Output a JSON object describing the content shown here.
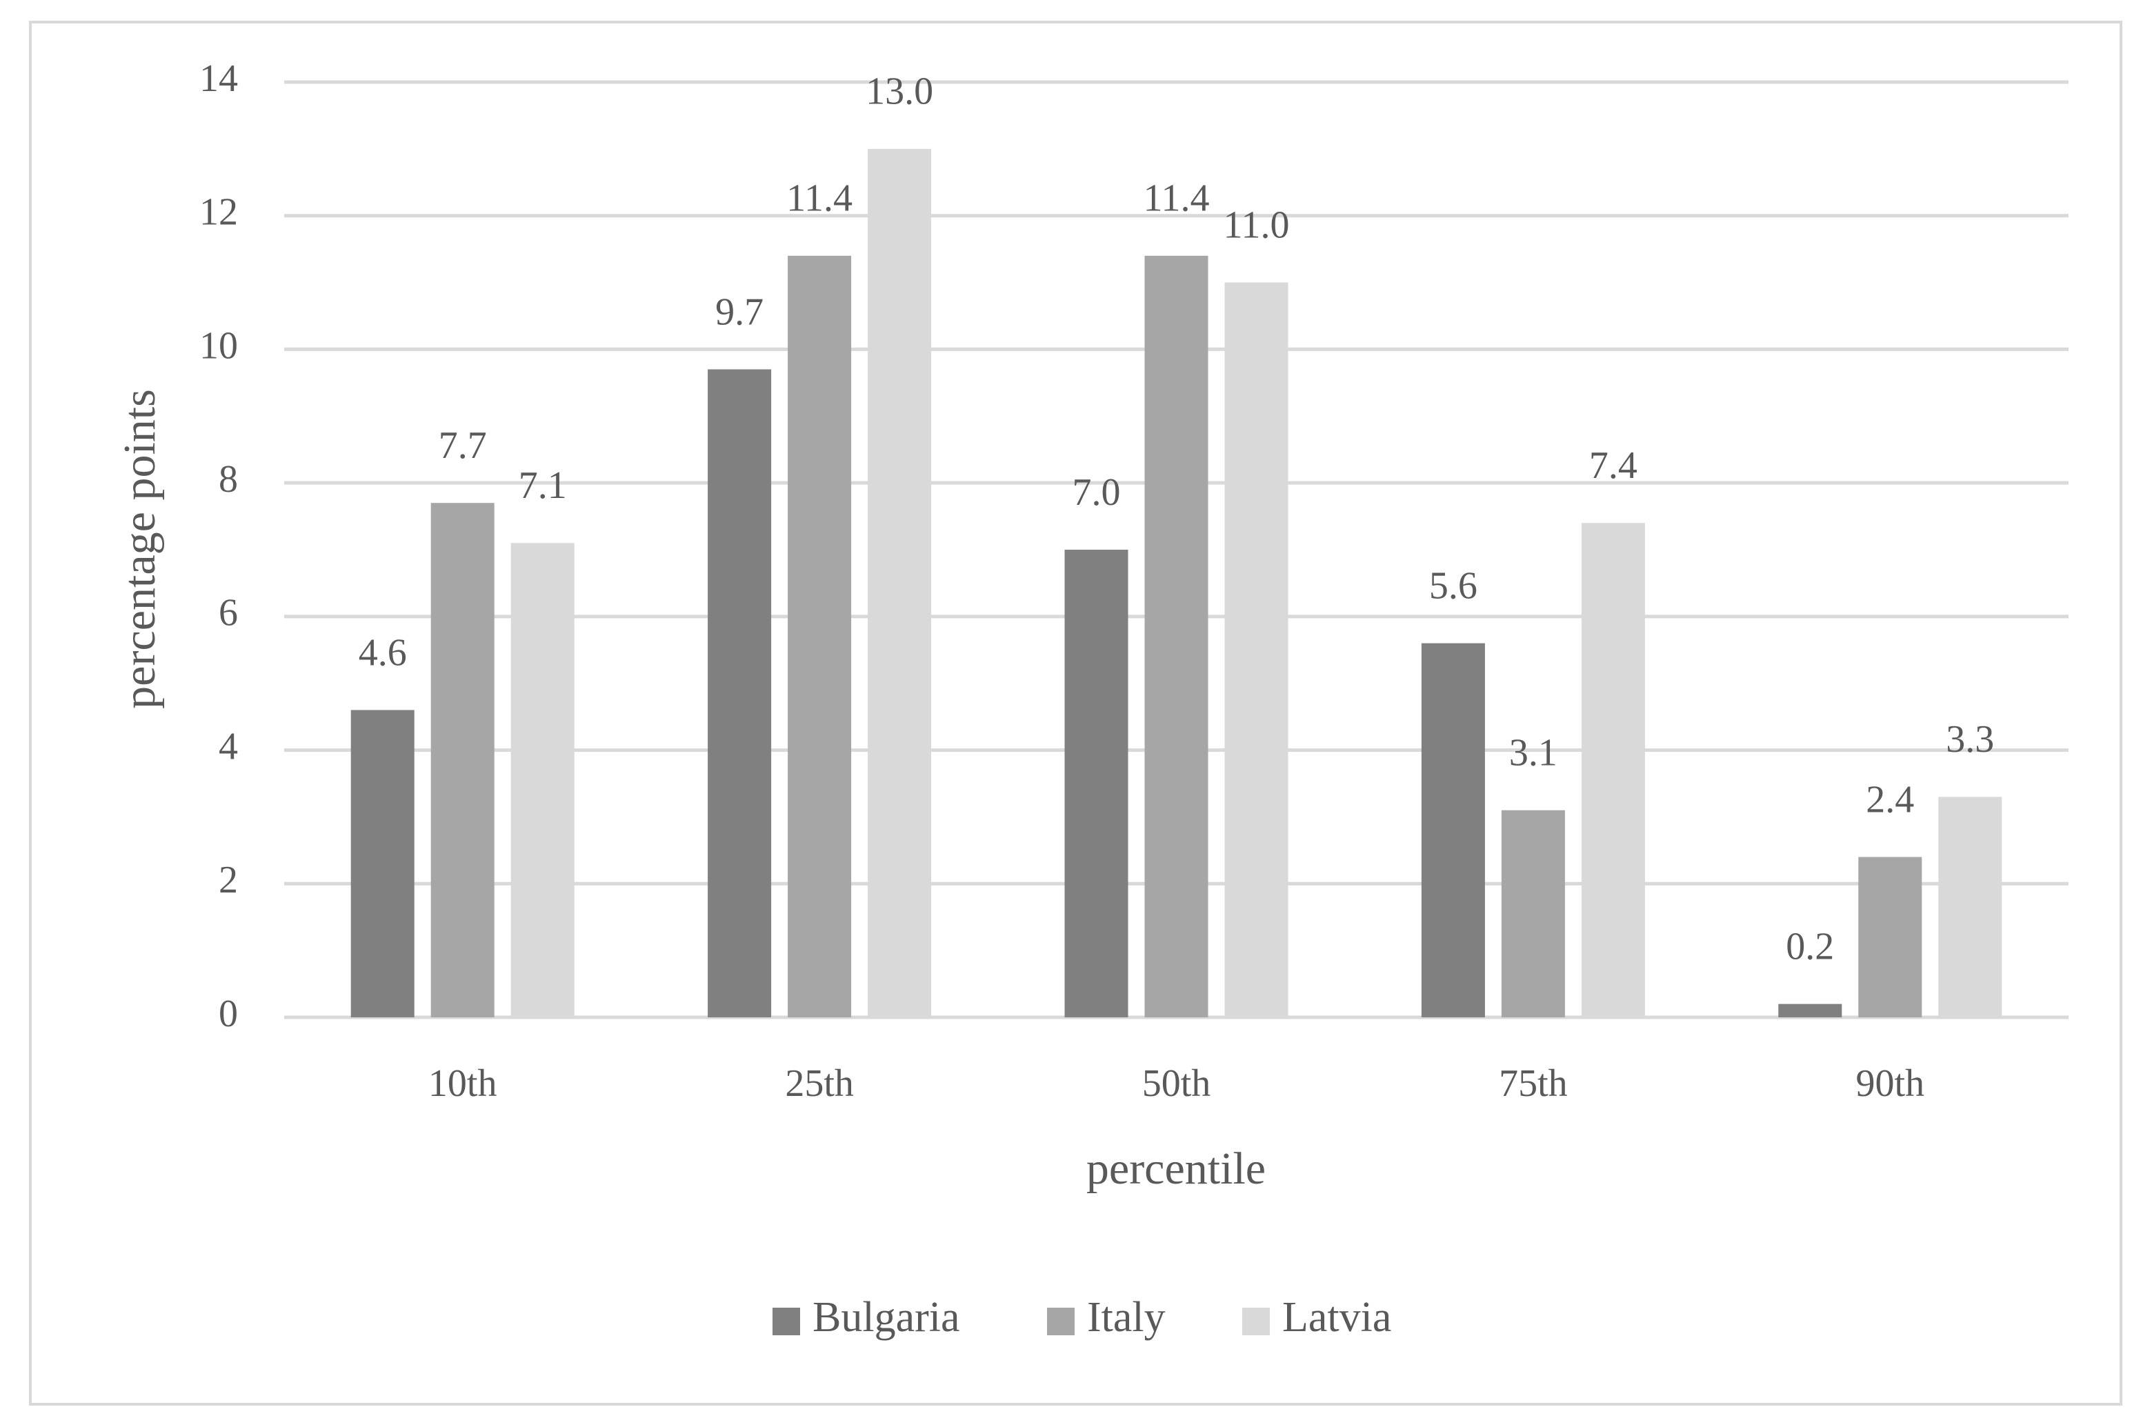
{
  "chart_data": {
    "type": "bar",
    "x_label": "percentile",
    "y_label": "percentage points",
    "categories": [
      "10th",
      "25th",
      "50th",
      "75th",
      "90th"
    ],
    "series": [
      {
        "name": "Bulgaria",
        "color": "#808080",
        "values": [
          4.6,
          9.7,
          7.0,
          5.6,
          0.2
        ],
        "value_labels": [
          "4.6",
          "9.7",
          "7.0",
          "5.6",
          "0.2"
        ]
      },
      {
        "name": "Italy",
        "color": "#a6a6a6",
        "values": [
          7.7,
          11.4,
          11.4,
          3.1,
          2.4
        ],
        "value_labels": [
          "7.7",
          "11.4",
          "11.4",
          "3.1",
          "2.4"
        ]
      },
      {
        "name": "Latvia",
        "color": "#d9d9d9",
        "values": [
          7.1,
          13.0,
          11.0,
          7.4,
          3.3
        ],
        "value_labels": [
          "7.1",
          "13.0",
          "11.0",
          "7.4",
          "3.3"
        ]
      }
    ],
    "ylim": [
      0,
      14
    ],
    "yticks": [
      0,
      2,
      4,
      6,
      8,
      10,
      12,
      14
    ],
    "grid": true,
    "legend": "bottom"
  }
}
